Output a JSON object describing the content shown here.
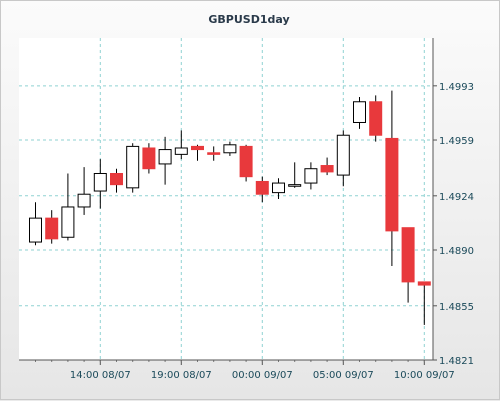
{
  "chart_data": {
    "type": "candlestick",
    "title": "GBPUSD1day",
    "y_ticks": [
      "1.4993",
      "1.4959",
      "1.4924",
      "1.4890",
      "1.4855",
      "1.4821"
    ],
    "x_ticks": [
      "14:00 08/07",
      "19:00 08/07",
      "00:00 09/07",
      "05:00 09/07",
      "10:00 09/07"
    ],
    "ylim": [
      1.4821,
      1.5023
    ],
    "grid": true,
    "colors": {
      "up": "#ffffff",
      "down": "#e8393c",
      "outline": "#000000",
      "grid": "#8fd2d2"
    },
    "candles": [
      {
        "open": 1.4895,
        "close": 1.491,
        "high": 1.492,
        "low": 1.4893
      },
      {
        "open": 1.491,
        "close": 1.4897,
        "high": 1.4915,
        "low": 1.4894
      },
      {
        "open": 1.4898,
        "close": 1.4917,
        "high": 1.4938,
        "low": 1.4896
      },
      {
        "open": 1.4917,
        "close": 1.4925,
        "high": 1.4942,
        "low": 1.4912
      },
      {
        "open": 1.4927,
        "close": 1.4938,
        "high": 1.4947,
        "low": 1.4916
      },
      {
        "open": 1.4938,
        "close": 1.4931,
        "high": 1.4941,
        "low": 1.4926
      },
      {
        "open": 1.4929,
        "close": 1.4955,
        "high": 1.4957,
        "low": 1.4926
      },
      {
        "open": 1.4954,
        "close": 1.4941,
        "high": 1.4957,
        "low": 1.4938
      },
      {
        "open": 1.4944,
        "close": 1.4953,
        "high": 1.4961,
        "low": 1.4931
      },
      {
        "open": 1.495,
        "close": 1.4954,
        "high": 1.4965,
        "low": 1.4947
      },
      {
        "open": 1.4955,
        "close": 1.4953,
        "high": 1.4956,
        "low": 1.4946
      },
      {
        "open": 1.4951,
        "close": 1.495,
        "high": 1.4955,
        "low": 1.4946
      },
      {
        "open": 1.4951,
        "close": 1.4956,
        "high": 1.4958,
        "low": 1.4949
      },
      {
        "open": 1.4955,
        "close": 1.4936,
        "high": 1.4956,
        "low": 1.4933
      },
      {
        "open": 1.4933,
        "close": 1.4925,
        "high": 1.4936,
        "low": 1.492
      },
      {
        "open": 1.4926,
        "close": 1.4932,
        "high": 1.4935,
        "low": 1.4922
      },
      {
        "open": 1.493,
        "close": 1.4931,
        "high": 1.4945,
        "low": 1.4929
      },
      {
        "open": 1.4932,
        "close": 1.4941,
        "high": 1.4945,
        "low": 1.4928
      },
      {
        "open": 1.4943,
        "close": 1.4939,
        "high": 1.4948,
        "low": 1.4937
      },
      {
        "open": 1.4937,
        "close": 1.4962,
        "high": 1.4965,
        "low": 1.493
      },
      {
        "open": 1.497,
        "close": 1.4983,
        "high": 1.4986,
        "low": 1.4966
      },
      {
        "open": 1.4983,
        "close": 1.4962,
        "high": 1.4987,
        "low": 1.4958
      },
      {
        "open": 1.496,
        "close": 1.4902,
        "high": 1.499,
        "low": 1.488
      },
      {
        "open": 1.4904,
        "close": 1.487,
        "high": 1.4904,
        "low": 1.4857
      },
      {
        "open": 1.487,
        "close": 1.4868,
        "high": 1.487,
        "low": 1.4843
      }
    ]
  }
}
